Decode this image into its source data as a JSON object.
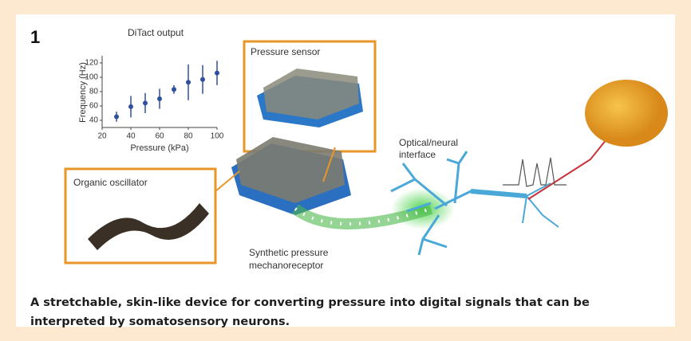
{
  "figure": {
    "number": "1",
    "labels": {
      "pressure_sensor": "Pressure sensor",
      "organic_oscillator": "Organic oscillator",
      "mechanoreceptor": [
        "Synthetic pressure",
        "mechanoreceptor"
      ],
      "interface": [
        "Optical/neural",
        "interface"
      ]
    },
    "caption": "A stretchable, skin-like device for converting pressure into digital signals that can be interpreted by somatosensory neurons."
  },
  "chart_data": {
    "type": "scatter",
    "title": "DiTact output",
    "x_label": "Pressure (kPa)",
    "y_label": "Frequency (Hz)",
    "x": [
      30,
      40,
      50,
      60,
      70,
      80,
      90,
      100
    ],
    "values": [
      45,
      59,
      64,
      70,
      83,
      93,
      97,
      106
    ],
    "errors": [
      7,
      15,
      14,
      14,
      6,
      25,
      20,
      17
    ],
    "color": "#2f4f9f",
    "xlim": [
      20,
      100
    ],
    "ylim": [
      30,
      130
    ],
    "xticks": [
      20,
      40,
      60,
      80,
      100
    ],
    "yticks": [
      40,
      60,
      80,
      100,
      120
    ]
  }
}
